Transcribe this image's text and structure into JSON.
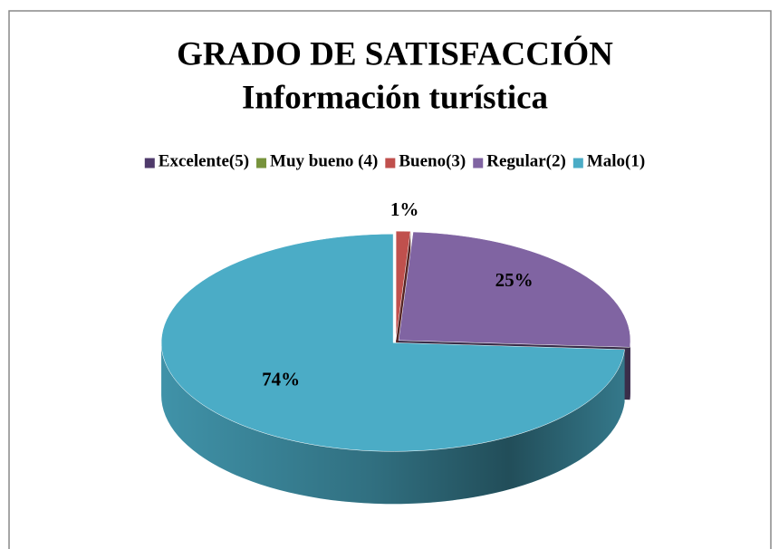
{
  "chart_data": {
    "type": "pie3d",
    "title": "GRADO DE SATISFACCIÓN",
    "subtitle": "Información turística",
    "categories": [
      "Excelente(5)",
      "Muy bueno (4)",
      "Bueno(3)",
      "Regular(2)",
      "Malo(1)"
    ],
    "values": [
      0,
      0,
      1,
      25,
      74
    ],
    "value_labels": [
      null,
      null,
      "1%",
      "25%",
      "74%"
    ],
    "colors": [
      "#4f3a6b",
      "#77933c",
      "#c0504d",
      "#8064a2",
      "#4bacc6"
    ],
    "legend": "top"
  }
}
